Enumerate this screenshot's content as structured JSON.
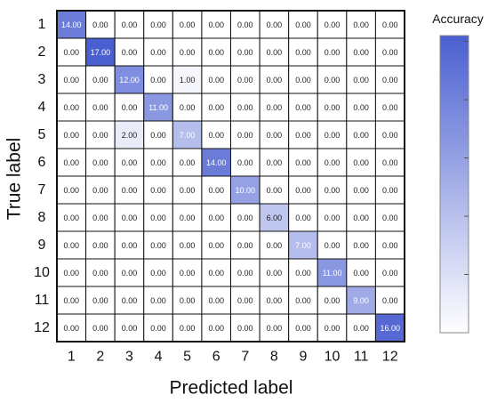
{
  "chart_data": {
    "type": "heatmap",
    "xlabel": "Predicted label",
    "ylabel": "True label",
    "x_categories": [
      "1",
      "2",
      "3",
      "4",
      "5",
      "6",
      "7",
      "8",
      "9",
      "10",
      "11",
      "12"
    ],
    "y_categories": [
      "1",
      "2",
      "3",
      "4",
      "5",
      "6",
      "7",
      "8",
      "9",
      "10",
      "11",
      "12"
    ],
    "matrix": [
      [
        14,
        0,
        0,
        0,
        0,
        0,
        0,
        0,
        0,
        0,
        0,
        0
      ],
      [
        0,
        17,
        0,
        0,
        0,
        0,
        0,
        0,
        0,
        0,
        0,
        0
      ],
      [
        0,
        0,
        12,
        0,
        1,
        0,
        0,
        0,
        0,
        0,
        0,
        0
      ],
      [
        0,
        0,
        0,
        11,
        0,
        0,
        0,
        0,
        0,
        0,
        0,
        0
      ],
      [
        0,
        0,
        2,
        0,
        7,
        0,
        0,
        0,
        0,
        0,
        0,
        0
      ],
      [
        0,
        0,
        0,
        0,
        0,
        14,
        0,
        0,
        0,
        0,
        0,
        0
      ],
      [
        0,
        0,
        0,
        0,
        0,
        0,
        10,
        0,
        0,
        0,
        0,
        0
      ],
      [
        0,
        0,
        0,
        0,
        0,
        0,
        0,
        6,
        0,
        0,
        0,
        0
      ],
      [
        0,
        0,
        0,
        0,
        0,
        0,
        0,
        0,
        7,
        0,
        0,
        0
      ],
      [
        0,
        0,
        0,
        0,
        0,
        0,
        0,
        0,
        0,
        11,
        0,
        0
      ],
      [
        0,
        0,
        0,
        0,
        0,
        0,
        0,
        0,
        0,
        0,
        9,
        0
      ],
      [
        0,
        0,
        0,
        0,
        0,
        0,
        0,
        0,
        0,
        0,
        0,
        16
      ]
    ],
    "value_format_decimals": 2,
    "value_range": [
      0,
      17
    ],
    "colorbar": {
      "title": "Accuracy",
      "color_low": "#ffffff",
      "color_high": "#4a5fd0"
    },
    "grid": true
  }
}
